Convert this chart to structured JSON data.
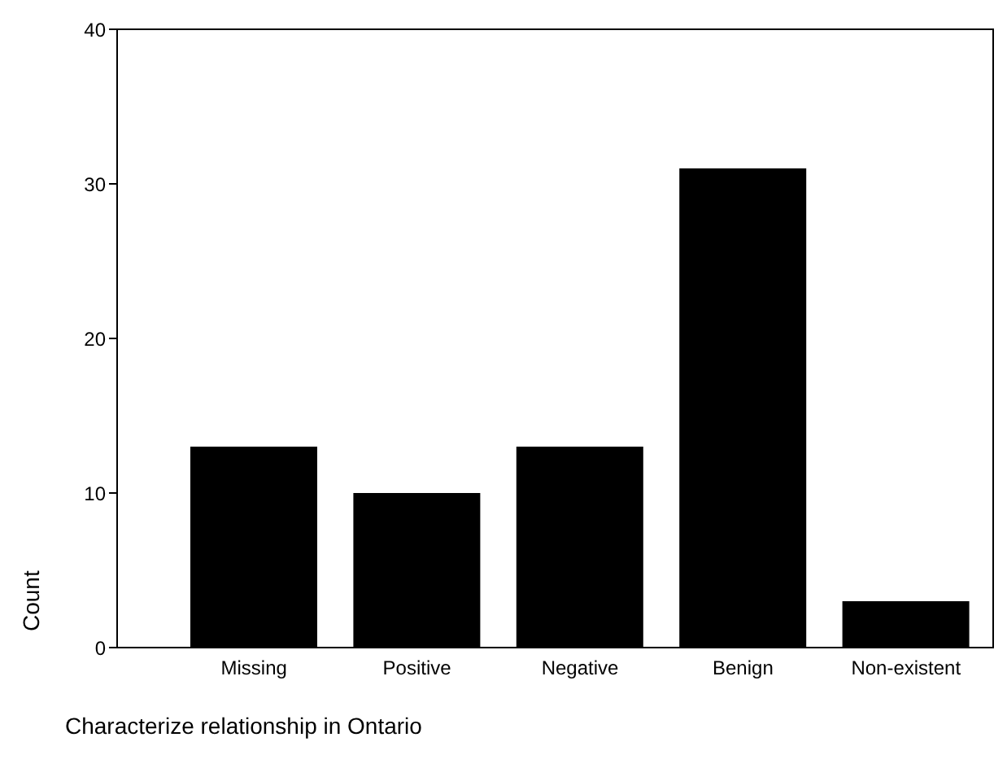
{
  "chart_data": {
    "type": "bar",
    "xlabel": "Characterize relationship in Ontario",
    "ylabel": "Count",
    "categories": [
      "Missing",
      "Positive",
      "Negative",
      "Benign",
      "Non-existent"
    ],
    "values": [
      13,
      10,
      13,
      31,
      3
    ],
    "color": "#000000",
    "ylim": [
      0,
      40
    ],
    "yticks": [
      0,
      10,
      20,
      30,
      40
    ]
  }
}
